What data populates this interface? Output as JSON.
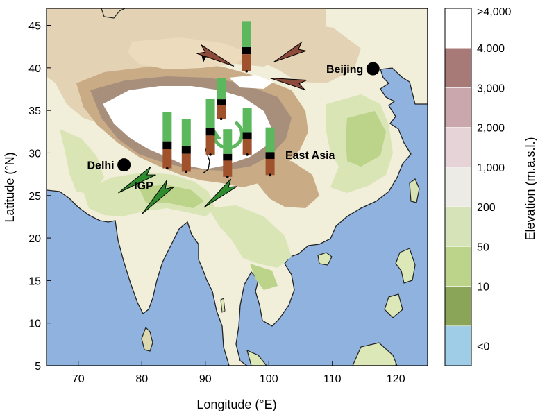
{
  "map": {
    "lon_range": [
      65,
      125
    ],
    "lat_range": [
      5,
      47
    ],
    "x_ticks": [
      {
        "value": 70,
        "label": "70"
      },
      {
        "value": 80,
        "label": "80"
      },
      {
        "value": 90,
        "label": "90"
      },
      {
        "value": 100,
        "label": "100"
      },
      {
        "value": 110,
        "label": "110"
      },
      {
        "value": 120,
        "label": "120"
      }
    ],
    "y_ticks": [
      {
        "value": 5,
        "label": "5"
      },
      {
        "value": 10,
        "label": "10"
      },
      {
        "value": 15,
        "label": "15"
      },
      {
        "value": 20,
        "label": "20"
      },
      {
        "value": 25,
        "label": "25"
      },
      {
        "value": 30,
        "label": "30"
      },
      {
        "value": 35,
        "label": "35"
      },
      {
        "value": 40,
        "label": "40"
      },
      {
        "value": 45,
        "label": "45"
      }
    ],
    "xlabel": "Longitude (°E)",
    "ylabel": "Latitude (°N)",
    "cities": [
      {
        "name": "Delhi",
        "lon": 77.2,
        "lat": 28.6
      },
      {
        "name": "Beijing",
        "lon": 116.4,
        "lat": 39.9
      }
    ],
    "region_labels": [
      {
        "text": "IGP",
        "lon": 80.3,
        "lat": 25.7
      },
      {
        "text": "East Asia",
        "lon": 106.5,
        "lat": 29.3
      }
    ],
    "bars": [
      {
        "lon": 84.0,
        "lat": 28.2,
        "top_lat": 34.8
      },
      {
        "lon": 87.0,
        "lat": 27.8,
        "top_lat": 34.0
      },
      {
        "lon": 90.8,
        "lat": 29.8,
        "top_lat": 36.4
      },
      {
        "lon": 92.5,
        "lat": 34.0,
        "top_lat": 38.8
      },
      {
        "lon": 93.5,
        "lat": 27.2,
        "top_lat": 32.8
      },
      {
        "lon": 96.6,
        "lat": 29.8,
        "top_lat": 35.3
      },
      {
        "lon": 96.5,
        "lat": 39.6,
        "top_lat": 45.5
      },
      {
        "lon": 100.2,
        "lat": 27.4,
        "top_lat": 33.0
      }
    ],
    "colors": {
      "ocean": "#8fb3de",
      "lowland": "#d9e5b5",
      "plain": "#f1eed9",
      "upland": "#e3d2b4",
      "mountain": "#c9ab86",
      "high": "#a78f7c",
      "snow": "#ffffff",
      "bar_green": "#5cb85c",
      "bar_brown": "#a0522d",
      "arrow_brown": "#8b4a3a",
      "arrow_green": "#2e8b2e"
    }
  },
  "colorbar": {
    "title": "Elevation (m.a.s.l.)",
    "segments": [
      {
        "color": "#ffffff"
      },
      {
        "color": "#a77a78"
      },
      {
        "color": "#c9a7ad"
      },
      {
        "color": "#e6d3d8"
      },
      {
        "color": "#ecebe6"
      },
      {
        "color": "#d6e2b8"
      },
      {
        "color": "#bcd38a"
      },
      {
        "color": "#8aa458"
      },
      {
        "color": "#9fcce6"
      }
    ],
    "labels": [
      ">4,000",
      "4,000",
      "3,000",
      "2,000",
      "1,000",
      "200",
      "50",
      "10",
      "<0"
    ]
  }
}
